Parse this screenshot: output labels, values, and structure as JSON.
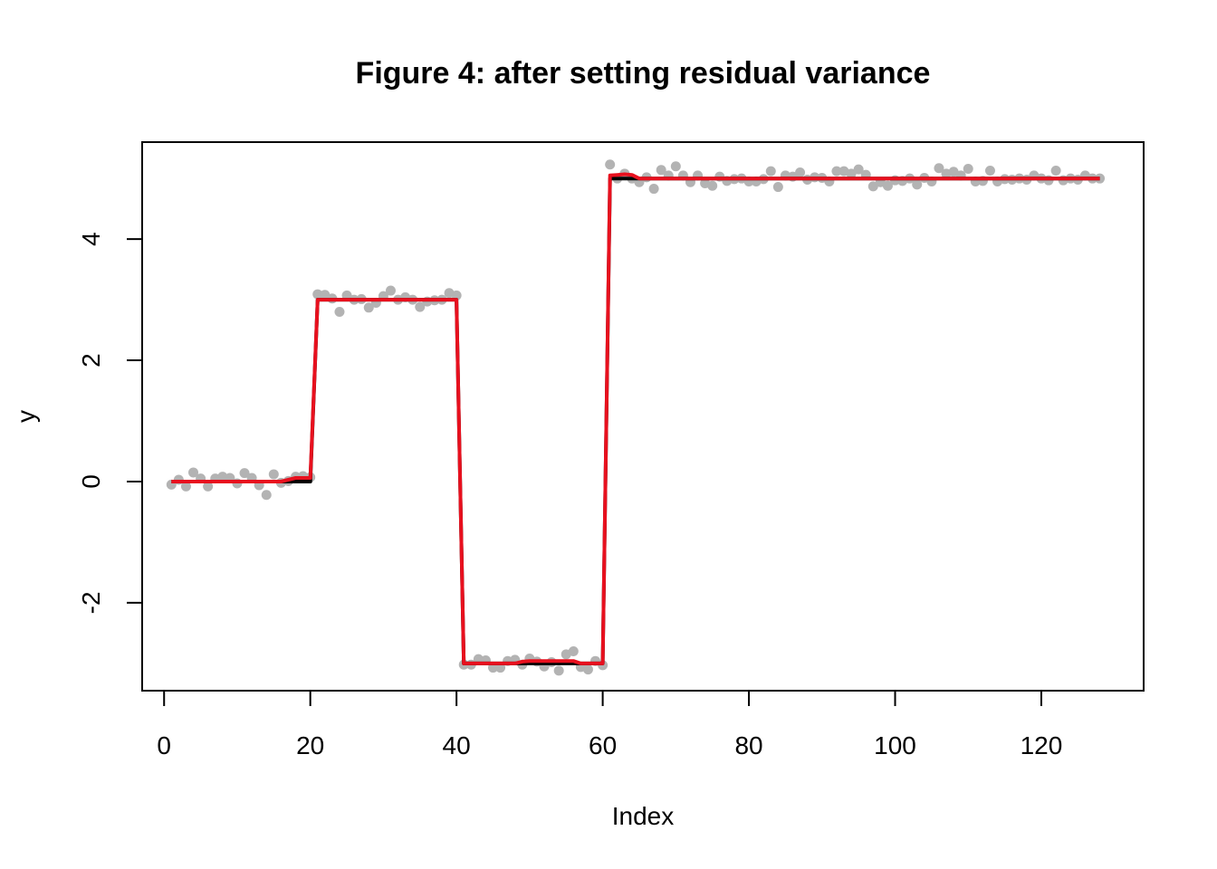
{
  "chart_data": {
    "type": "line",
    "title": "Figure 4: after setting residual variance",
    "xlabel": "Index",
    "ylabel": "y",
    "xlim": [
      -3,
      134
    ],
    "ylim": [
      -3.45,
      5.6
    ],
    "xticks": [
      0,
      20,
      40,
      60,
      80,
      100,
      120
    ],
    "yticks": [
      -2,
      0,
      2,
      4
    ],
    "grid": false,
    "legend": "none",
    "colors": {
      "points": "#b3b3b3",
      "truth": "#000000",
      "fit": "#e8101e"
    },
    "series": [
      {
        "kind": "points",
        "x": [
          1,
          2,
          3,
          4,
          5,
          6,
          7,
          8,
          9,
          10,
          11,
          12,
          13,
          14,
          15,
          16,
          17,
          18,
          19,
          20,
          21,
          22,
          23,
          24,
          25,
          26,
          27,
          28,
          29,
          30,
          31,
          32,
          33,
          34,
          35,
          36,
          37,
          38,
          39,
          40,
          41,
          42,
          43,
          44,
          45,
          46,
          47,
          48,
          49,
          50,
          51,
          52,
          53,
          54,
          55,
          56,
          57,
          58,
          59,
          60,
          61,
          62,
          63,
          64,
          65,
          66,
          67,
          68,
          69,
          70,
          71,
          72,
          73,
          74,
          75,
          76,
          77,
          78,
          79,
          80,
          81,
          82,
          83,
          84,
          85,
          86,
          87,
          88,
          89,
          90,
          91,
          92,
          93,
          94,
          95,
          96,
          97,
          98,
          99,
          100,
          101,
          102,
          103,
          104,
          105,
          106,
          107,
          108,
          109,
          110,
          111,
          112,
          113,
          114,
          115,
          116,
          117,
          118,
          119,
          120,
          121,
          122,
          123,
          124,
          125,
          126,
          127,
          128
        ],
        "values": [
          -0.05,
          0.03,
          -0.08,
          0.15,
          0.05,
          -0.08,
          0.05,
          0.08,
          0.06,
          -0.03,
          0.14,
          0.06,
          -0.06,
          -0.22,
          0.12,
          -0.02,
          0.01,
          0.08,
          0.09,
          0.07,
          3.09,
          3.08,
          3.02,
          2.8,
          3.07,
          3.0,
          3.01,
          2.87,
          2.95,
          3.06,
          3.15,
          3.0,
          3.04,
          3.0,
          2.88,
          2.97,
          2.99,
          3.0,
          3.11,
          3.07,
          -3.02,
          -3.02,
          -2.93,
          -2.95,
          -3.07,
          -3.07,
          -2.96,
          -2.94,
          -3.02,
          -2.92,
          -2.97,
          -3.05,
          -2.98,
          -3.12,
          -2.85,
          -2.8,
          -3.06,
          -3.1,
          -2.96,
          -3.03,
          5.23,
          5.0,
          5.08,
          5.0,
          4.94,
          5.02,
          4.83,
          5.14,
          5.05,
          5.2,
          5.05,
          4.94,
          5.05,
          4.92,
          4.88,
          5.03,
          4.96,
          4.99,
          5.0,
          4.95,
          4.95,
          4.99,
          5.12,
          4.86,
          5.05,
          5.03,
          5.1,
          4.98,
          5.02,
          5.01,
          4.95,
          5.12,
          5.12,
          5.08,
          5.15,
          5.06,
          4.87,
          4.94,
          4.88,
          4.97,
          4.96,
          5.0,
          4.9,
          5.01,
          4.95,
          5.17,
          5.08,
          5.11,
          5.05,
          5.16,
          4.95,
          4.96,
          5.13,
          4.95,
          4.99,
          4.98,
          5.0,
          4.98,
          5.05,
          5.0,
          4.97,
          5.13,
          4.97,
          5.0,
          4.98,
          5.05,
          5.0,
          5.0
        ]
      },
      {
        "kind": "line",
        "x": [
          1,
          20,
          21,
          40,
          41,
          60,
          61,
          128
        ],
        "values": [
          0,
          0,
          3,
          3,
          -3,
          -3,
          5,
          5
        ]
      },
      {
        "kind": "line",
        "x": [
          1,
          16,
          17,
          18,
          19,
          20,
          21,
          22,
          40,
          41,
          48,
          49,
          50,
          51,
          55,
          56,
          57,
          60,
          61,
          62,
          63,
          64,
          65,
          66,
          128
        ],
        "values": [
          0,
          0,
          0.03,
          0.06,
          0.06,
          0.06,
          3.0,
          3.0,
          3.0,
          -3.0,
          -3.0,
          -2.97,
          -2.96,
          -2.96,
          -2.96,
          -2.96,
          -3.0,
          -3.0,
          5.05,
          5.06,
          5.07,
          5.06,
          5.0,
          5.0,
          5.0
        ]
      }
    ]
  }
}
